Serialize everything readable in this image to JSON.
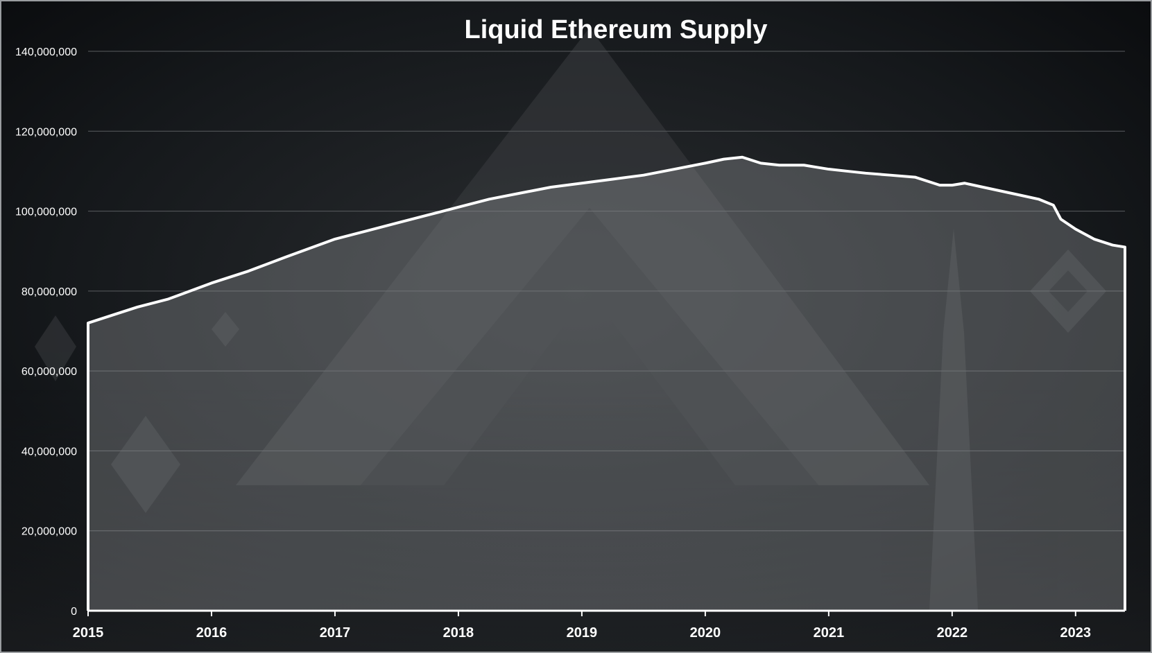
{
  "chart_data": {
    "type": "area",
    "title": "Liquid Ethereum Supply",
    "xlabel": "",
    "ylabel": "",
    "x_ticks": [
      "2015",
      "2016",
      "2017",
      "2018",
      "2019",
      "2020",
      "2021",
      "2022",
      "2023"
    ],
    "y_ticks": [
      0,
      20000000,
      40000000,
      60000000,
      80000000,
      100000000,
      120000000,
      140000000
    ],
    "y_tick_labels": [
      "0",
      "20,000,000",
      "40,000,000",
      "60,000,000",
      "80,000,000",
      "100,000,000",
      "120,000,000",
      "140,000,000"
    ],
    "xlim": [
      2015.0,
      2023.4
    ],
    "ylim": [
      0,
      140000000
    ],
    "grid": true,
    "legend": "none",
    "colors": {
      "background": "#0b0d10",
      "line": "#ffffff",
      "area_fill": "#9a9da0",
      "grid": "#5a5d60",
      "text": "#ffffff"
    },
    "series": [
      {
        "values": [
          [
            2015.0,
            72000000
          ],
          [
            2015.2,
            74000000
          ],
          [
            2015.4,
            76000000
          ],
          [
            2015.65,
            78000000
          ],
          [
            2016.0,
            82000000
          ],
          [
            2016.3,
            85000000
          ],
          [
            2016.6,
            88500000
          ],
          [
            2017.0,
            93000000
          ],
          [
            2017.25,
            95000000
          ],
          [
            2017.5,
            97000000
          ],
          [
            2017.75,
            99000000
          ],
          [
            2018.0,
            101000000
          ],
          [
            2018.25,
            103000000
          ],
          [
            2018.5,
            104500000
          ],
          [
            2018.75,
            106000000
          ],
          [
            2019.0,
            107000000
          ],
          [
            2019.25,
            108000000
          ],
          [
            2019.5,
            109000000
          ],
          [
            2019.75,
            110500000
          ],
          [
            2020.0,
            112000000
          ],
          [
            2020.15,
            113000000
          ],
          [
            2020.3,
            113500000
          ],
          [
            2020.45,
            112000000
          ],
          [
            2020.6,
            111500000
          ],
          [
            2020.8,
            111500000
          ],
          [
            2020.9,
            111000000
          ],
          [
            2021.0,
            110500000
          ],
          [
            2021.15,
            110000000
          ],
          [
            2021.3,
            109500000
          ],
          [
            2021.5,
            109000000
          ],
          [
            2021.7,
            108500000
          ],
          [
            2021.9,
            106500000
          ],
          [
            2022.0,
            106500000
          ],
          [
            2022.1,
            107000000
          ],
          [
            2022.25,
            106000000
          ],
          [
            2022.4,
            105000000
          ],
          [
            2022.55,
            104000000
          ],
          [
            2022.7,
            103000000
          ],
          [
            2022.82,
            101500000
          ],
          [
            2022.88,
            98000000
          ],
          [
            2023.0,
            95500000
          ],
          [
            2023.15,
            93000000
          ],
          [
            2023.3,
            91500000
          ],
          [
            2023.4,
            91000000
          ]
        ]
      }
    ]
  }
}
